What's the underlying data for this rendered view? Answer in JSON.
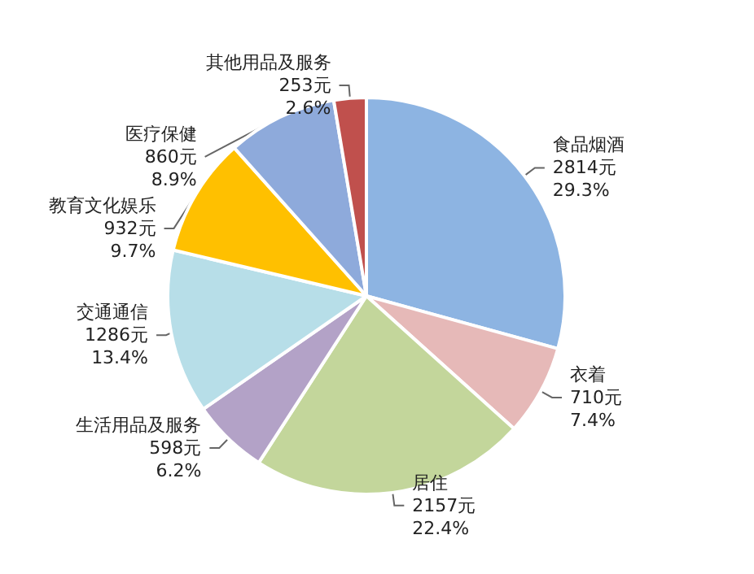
{
  "chart_data": {
    "type": "pie",
    "categories": [
      "食品烟酒",
      "衣着",
      "居住",
      "生活用品及服务",
      "交通通信",
      "教育文化娱乐",
      "医疗保健",
      "其他用品及服务"
    ],
    "values": [
      2814,
      710,
      2157,
      598,
      1286,
      932,
      860,
      253
    ],
    "value_labels": [
      "2814元\n29.3%",
      "710元\n7.4%",
      "2157元\n22.4%",
      "598元\n6.2%",
      "1286元\n13.4%",
      "932元\n9.7%",
      "860元\n8.9%",
      "253元\n2.6%"
    ],
    "colors": [
      "#8db4e2",
      "#e6b9b8",
      "#c3d69b",
      "#b3a2c7",
      "#b7dee8",
      "#ffc000",
      "#8eaadb",
      "#c0504d"
    ]
  }
}
